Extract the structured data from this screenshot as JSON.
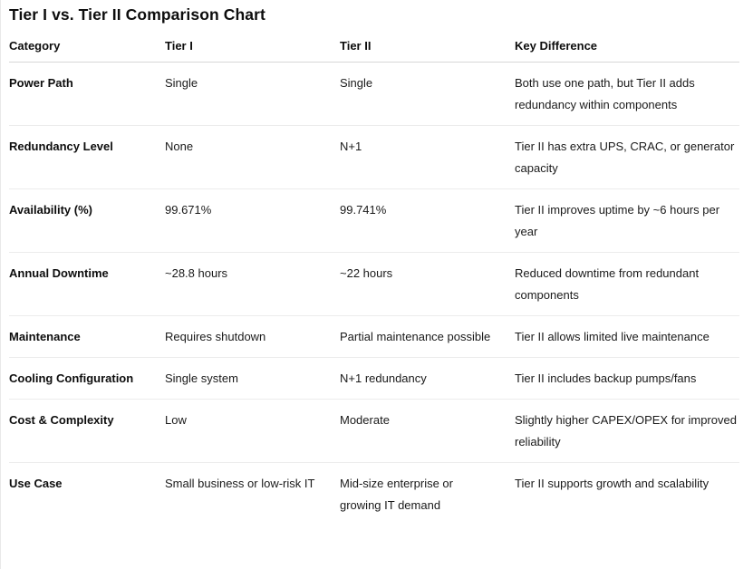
{
  "title": "Tier I vs. Tier II Comparison Chart",
  "table": {
    "columns": [
      "Category",
      "Tier I",
      "Tier II",
      "Key Difference"
    ],
    "rows": [
      {
        "category": "Power Path",
        "tier1": "Single",
        "tier2": "Single",
        "key_difference": "Both use one path, but Tier II adds redundancy within components"
      },
      {
        "category": "Redundancy Level",
        "tier1": "None",
        "tier2": "N+1",
        "key_difference": "Tier II has extra UPS, CRAC, or generator capacity"
      },
      {
        "category": "Availability (%)",
        "tier1": "99.671%",
        "tier2": "99.741%",
        "key_difference": "Tier II improves uptime by ~6 hours per year"
      },
      {
        "category": "Annual Downtime",
        "tier1": "~28.8 hours",
        "tier2": "~22 hours",
        "key_difference": "Reduced downtime from redundant components"
      },
      {
        "category": "Maintenance",
        "tier1": "Requires shutdown",
        "tier2": "Partial maintenance possible",
        "key_difference": "Tier II allows limited live maintenance"
      },
      {
        "category": "Cooling Configuration",
        "tier1": "Single system",
        "tier2": "N+1 redundancy",
        "key_difference": "Tier II includes backup pumps/fans"
      },
      {
        "category": "Cost & Complexity",
        "tier1": "Low",
        "tier2": "Moderate",
        "key_difference": "Slightly higher CAPEX/OPEX for improved reliability"
      },
      {
        "category": "Use Case",
        "tier1": "Small business or low-risk IT",
        "tier2": "Mid-size enterprise or growing IT demand",
        "key_difference": "Tier II supports growth and scalability"
      }
    ]
  },
  "colors": {
    "background": "#ffffff",
    "text_primary": "#0d0d0d",
    "text_body": "#1a1a1a",
    "header_divider": "#d6d6d6",
    "row_divider": "#ececec"
  }
}
